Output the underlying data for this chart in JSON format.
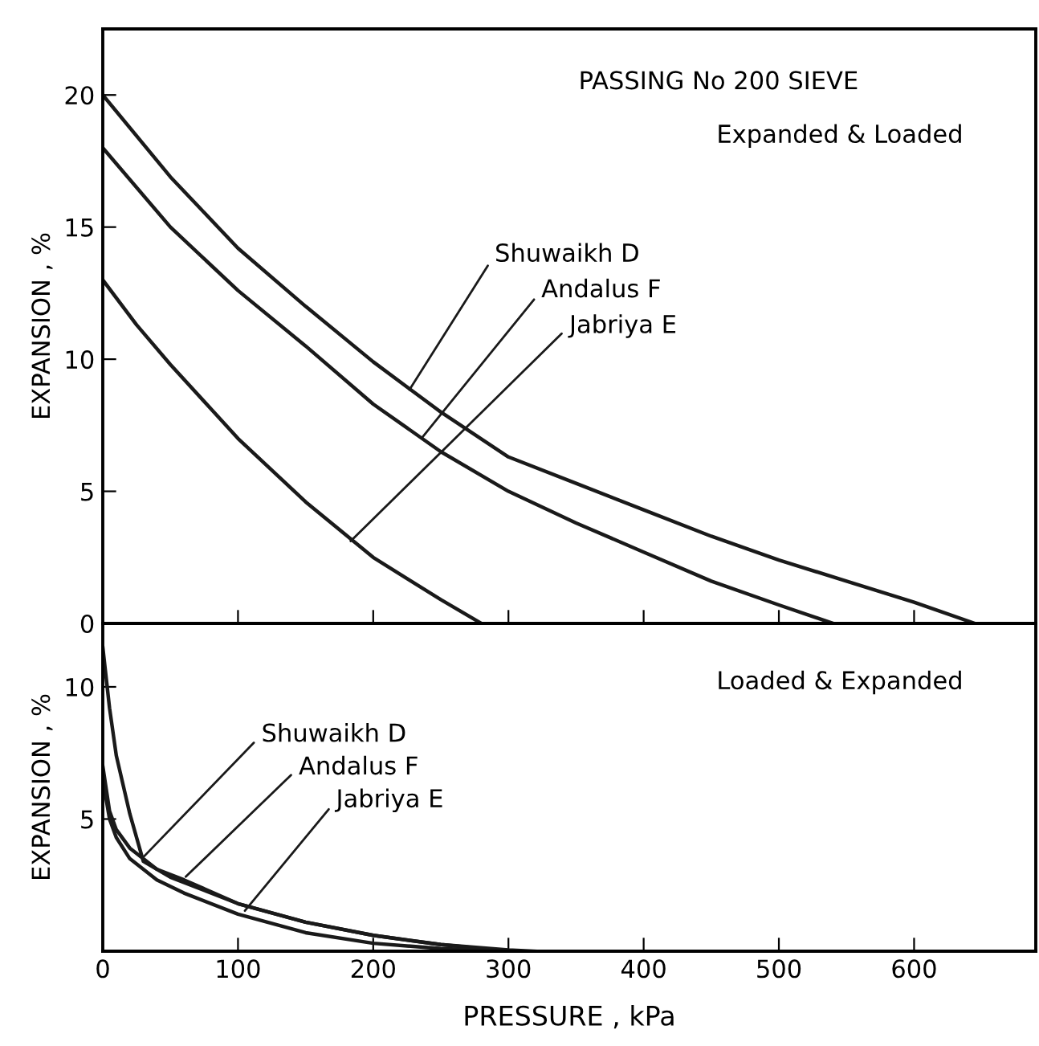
{
  "chart_data": [
    {
      "type": "line",
      "title": "PASSING No 200 SIEVE",
      "subtitle": "Expanded & Loaded",
      "ylabel": "EXPANSION , %",
      "xlim": [
        0,
        690
      ],
      "ylim": [
        0,
        22.5
      ],
      "xticks": [
        {
          "value": 100,
          "label": null
        },
        {
          "value": 200,
          "label": null
        },
        {
          "value": 300,
          "label": null
        },
        {
          "value": 400,
          "label": null
        },
        {
          "value": 500,
          "label": null
        },
        {
          "value": 600,
          "label": null
        }
      ],
      "yticks": [
        0,
        5,
        10,
        15,
        20
      ],
      "tick_labels": "y",
      "grid": false,
      "marker": "none",
      "line_style": "solid",
      "series": [
        {
          "color": "#1a1a1a",
          "x": [
            0,
            50,
            100,
            150,
            200,
            250,
            300,
            350,
            400,
            450,
            500,
            550,
            600,
            645
          ],
          "values": [
            20,
            16.9,
            14.2,
            12.0,
            9.9,
            8.0,
            6.3,
            5.3,
            4.3,
            3.3,
            2.4,
            1.6,
            0.8,
            0
          ]
        },
        {
          "color": "#1a1a1a",
          "x": [
            0,
            50,
            100,
            150,
            200,
            250,
            300,
            350,
            400,
            450,
            500,
            540
          ],
          "values": [
            18,
            15.0,
            12.6,
            10.5,
            8.3,
            6.5,
            5.0,
            3.8,
            2.7,
            1.6,
            0.7,
            0
          ]
        },
        {
          "color": "#1a1a1a",
          "x": [
            0,
            25,
            50,
            100,
            150,
            200,
            250,
            280
          ],
          "values": [
            13,
            11.3,
            9.8,
            7.0,
            4.6,
            2.5,
            0.9,
            0
          ]
        }
      ],
      "annotations": [
        {
          "text": "Shuwaikh D",
          "x": 225,
          "y": 8.7
        },
        {
          "text": "Andalus F",
          "x": 234,
          "y": 6.9
        },
        {
          "text": "Jabriya E",
          "x": 181,
          "y": 3.0
        }
      ]
    },
    {
      "type": "line",
      "title": "Loaded & Expanded",
      "xlabel": "PRESSURE , kPa",
      "ylabel": "EXPANSION , %",
      "xlim": [
        0,
        690
      ],
      "ylim": [
        0,
        12.4
      ],
      "xticks": [
        0,
        100,
        200,
        300,
        400,
        500,
        600
      ],
      "yticks": [
        5,
        10
      ],
      "grid": false,
      "marker": "none",
      "line_style": "solid",
      "series": [
        {
          "color": "#1a1a1a",
          "x": [
            0,
            5,
            10,
            20,
            30,
            50,
            100,
            150,
            200,
            250,
            300,
            320
          ],
          "values": [
            11.5,
            9.2,
            7.4,
            5.2,
            3.4,
            2.8,
            1.8,
            1.1,
            0.6,
            0.25,
            0.05,
            0
          ]
        },
        {
          "color": "#1a1a1a",
          "x": [
            0,
            5,
            10,
            20,
            40,
            60,
            100,
            150,
            200,
            250,
            300
          ],
          "values": [
            7,
            5.3,
            4.6,
            3.9,
            3.1,
            2.7,
            1.8,
            1.1,
            0.6,
            0.25,
            0
          ]
        },
        {
          "color": "#1a1a1a",
          "x": [
            0,
            5,
            10,
            20,
            40,
            60,
            100,
            150,
            200,
            250,
            300
          ],
          "values": [
            6.5,
            5.0,
            4.3,
            3.5,
            2.7,
            2.2,
            1.4,
            0.7,
            0.3,
            0.1,
            0
          ]
        }
      ],
      "annotations": [
        {
          "text": "Shuwaikh D",
          "x": 27,
          "y": 3.4
        },
        {
          "text": "Andalus F",
          "x": 59,
          "y": 2.7
        },
        {
          "text": "Jabriya E",
          "x": 103,
          "y": 1.4
        }
      ]
    }
  ]
}
